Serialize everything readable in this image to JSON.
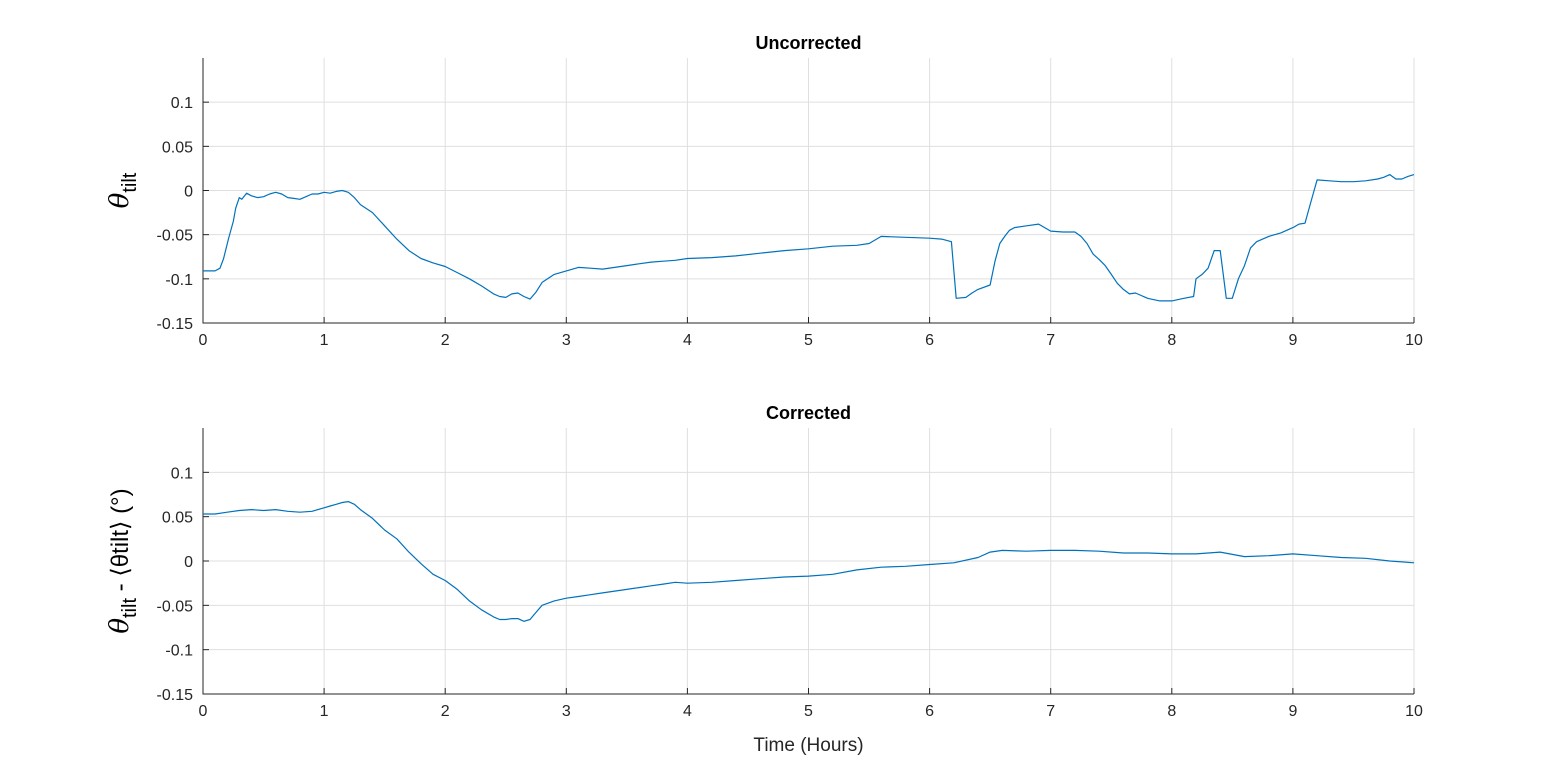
{
  "figure": {
    "series_color": "#0072bd"
  },
  "chart_data": [
    {
      "type": "line",
      "title": "Uncorrected",
      "xlabel": "",
      "ylabel_main": "θ",
      "ylabel_sub": "tilt",
      "ylabel_rest": "",
      "xlim": [
        0,
        10
      ],
      "ylim": [
        -0.15,
        0.15
      ],
      "xticks": [
        "0",
        "1",
        "2",
        "3",
        "4",
        "5",
        "6",
        "7",
        "8",
        "9",
        "10"
      ],
      "yticks": [
        "-0.15",
        "-0.1",
        "-0.05",
        "0",
        "0.05",
        "0.1"
      ],
      "ytick_values": [
        -0.15,
        -0.1,
        -0.05,
        0,
        0.05,
        0.1
      ],
      "grid": true,
      "series": [
        {
          "x": [
            0,
            0.1,
            0.14,
            0.17,
            0.21,
            0.25,
            0.27,
            0.3,
            0.32,
            0.36,
            0.4,
            0.45,
            0.5,
            0.55,
            0.6,
            0.65,
            0.7,
            0.75,
            0.8,
            0.85,
            0.9,
            0.95,
            1.0,
            1.05,
            1.1,
            1.15,
            1.2,
            1.25,
            1.3,
            1.4,
            1.5,
            1.6,
            1.7,
            1.8,
            1.9,
            2.0,
            2.1,
            2.2,
            2.3,
            2.4,
            2.45,
            2.5,
            2.55,
            2.6,
            2.65,
            2.7,
            2.75,
            2.8,
            2.9,
            3.0,
            3.1,
            3.2,
            3.3,
            3.4,
            3.5,
            3.6,
            3.7,
            3.8,
            3.9,
            4.0,
            4.2,
            4.4,
            4.6,
            4.8,
            5.0,
            5.2,
            5.4,
            5.5,
            5.6,
            5.8,
            6.0,
            6.1,
            6.18,
            6.22,
            6.3,
            6.35,
            6.4,
            6.5,
            6.54,
            6.58,
            6.62,
            6.66,
            6.7,
            6.8,
            6.9,
            7.0,
            7.1,
            7.2,
            7.25,
            7.3,
            7.35,
            7.4,
            7.45,
            7.5,
            7.55,
            7.6,
            7.65,
            7.7,
            7.8,
            7.9,
            8.0,
            8.1,
            8.18,
            8.2,
            8.25,
            8.3,
            8.35,
            8.4,
            8.45,
            8.5,
            8.55,
            8.6,
            8.65,
            8.7,
            8.8,
            8.9,
            9.0,
            9.05,
            9.1,
            9.15,
            9.2,
            9.3,
            9.4,
            9.5,
            9.6,
            9.7,
            9.75,
            9.8,
            9.85,
            9.9,
            9.95,
            10.0
          ],
          "y": [
            -0.091,
            -0.091,
            -0.088,
            -0.077,
            -0.055,
            -0.035,
            -0.02,
            -0.008,
            -0.01,
            -0.003,
            -0.006,
            -0.008,
            -0.007,
            -0.004,
            -0.002,
            -0.004,
            -0.008,
            -0.009,
            -0.01,
            -0.007,
            -0.004,
            -0.004,
            -0.002,
            -0.003,
            -0.001,
            0.0,
            -0.002,
            -0.008,
            -0.016,
            -0.025,
            -0.04,
            -0.055,
            -0.068,
            -0.077,
            -0.082,
            -0.086,
            -0.093,
            -0.1,
            -0.108,
            -0.117,
            -0.12,
            -0.121,
            -0.117,
            -0.116,
            -0.12,
            -0.123,
            -0.115,
            -0.104,
            -0.095,
            -0.091,
            -0.087,
            -0.088,
            -0.089,
            -0.087,
            -0.085,
            -0.083,
            -0.081,
            -0.08,
            -0.079,
            -0.077,
            -0.076,
            -0.074,
            -0.071,
            -0.068,
            -0.066,
            -0.063,
            -0.062,
            -0.06,
            -0.052,
            -0.053,
            -0.054,
            -0.055,
            -0.058,
            -0.122,
            -0.121,
            -0.116,
            -0.112,
            -0.107,
            -0.08,
            -0.06,
            -0.052,
            -0.045,
            -0.042,
            -0.04,
            -0.038,
            -0.046,
            -0.047,
            -0.047,
            -0.052,
            -0.06,
            -0.072,
            -0.078,
            -0.085,
            -0.095,
            -0.105,
            -0.112,
            -0.117,
            -0.116,
            -0.122,
            -0.125,
            -0.125,
            -0.122,
            -0.12,
            -0.1,
            -0.095,
            -0.088,
            -0.068,
            -0.068,
            -0.122,
            -0.122,
            -0.1,
            -0.085,
            -0.065,
            -0.058,
            -0.052,
            -0.048,
            -0.042,
            -0.038,
            -0.037,
            -0.012,
            0.012,
            0.011,
            0.01,
            0.01,
            0.011,
            0.013,
            0.015,
            0.018,
            0.013,
            0.013,
            0.016,
            0.018
          ],
          "color": "#0072bd"
        }
      ]
    },
    {
      "type": "line",
      "title": "Corrected",
      "xlabel": "Time (Hours)",
      "ylabel_main": "θ",
      "ylabel_sub": "tilt",
      "ylabel_rest": " - ⟨θtilt⟩ (°)",
      "xlim": [
        0,
        10
      ],
      "ylim": [
        -0.15,
        0.15
      ],
      "xticks": [
        "0",
        "1",
        "2",
        "3",
        "4",
        "5",
        "6",
        "7",
        "8",
        "9",
        "10"
      ],
      "yticks": [
        "-0.15",
        "-0.1",
        "-0.05",
        "0",
        "0.05",
        "0.1"
      ],
      "ytick_values": [
        -0.15,
        -0.1,
        -0.05,
        0,
        0.05,
        0.1
      ],
      "grid": true,
      "series": [
        {
          "x": [
            0,
            0.1,
            0.2,
            0.3,
            0.4,
            0.5,
            0.6,
            0.7,
            0.8,
            0.9,
            1.0,
            1.05,
            1.1,
            1.15,
            1.2,
            1.25,
            1.3,
            1.4,
            1.5,
            1.6,
            1.7,
            1.8,
            1.9,
            2.0,
            2.1,
            2.2,
            2.3,
            2.4,
            2.45,
            2.5,
            2.55,
            2.6,
            2.65,
            2.7,
            2.75,
            2.8,
            2.9,
            3.0,
            3.1,
            3.2,
            3.3,
            3.4,
            3.5,
            3.6,
            3.7,
            3.8,
            3.9,
            4.0,
            4.2,
            4.4,
            4.6,
            4.8,
            5.0,
            5.2,
            5.4,
            5.6,
            5.8,
            6.0,
            6.2,
            6.4,
            6.5,
            6.6,
            6.8,
            7.0,
            7.2,
            7.4,
            7.6,
            7.8,
            8.0,
            8.2,
            8.4,
            8.6,
            8.8,
            9.0,
            9.2,
            9.4,
            9.6,
            9.8,
            10.0
          ],
          "y": [
            0.053,
            0.053,
            0.055,
            0.057,
            0.058,
            0.057,
            0.058,
            0.056,
            0.055,
            0.056,
            0.06,
            0.062,
            0.064,
            0.066,
            0.067,
            0.064,
            0.058,
            0.048,
            0.035,
            0.025,
            0.01,
            -0.003,
            -0.015,
            -0.022,
            -0.032,
            -0.045,
            -0.055,
            -0.063,
            -0.066,
            -0.066,
            -0.065,
            -0.065,
            -0.068,
            -0.066,
            -0.058,
            -0.05,
            -0.045,
            -0.042,
            -0.04,
            -0.038,
            -0.036,
            -0.034,
            -0.032,
            -0.03,
            -0.028,
            -0.026,
            -0.024,
            -0.025,
            -0.024,
            -0.022,
            -0.02,
            -0.018,
            -0.017,
            -0.015,
            -0.01,
            -0.007,
            -0.006,
            -0.004,
            -0.002,
            0.004,
            0.01,
            0.012,
            0.011,
            0.012,
            0.012,
            0.011,
            0.009,
            0.009,
            0.008,
            0.008,
            0.01,
            0.005,
            0.006,
            0.008,
            0.006,
            0.004,
            0.003,
            0.0,
            -0.002
          ],
          "color": "#0072bd"
        }
      ]
    }
  ]
}
